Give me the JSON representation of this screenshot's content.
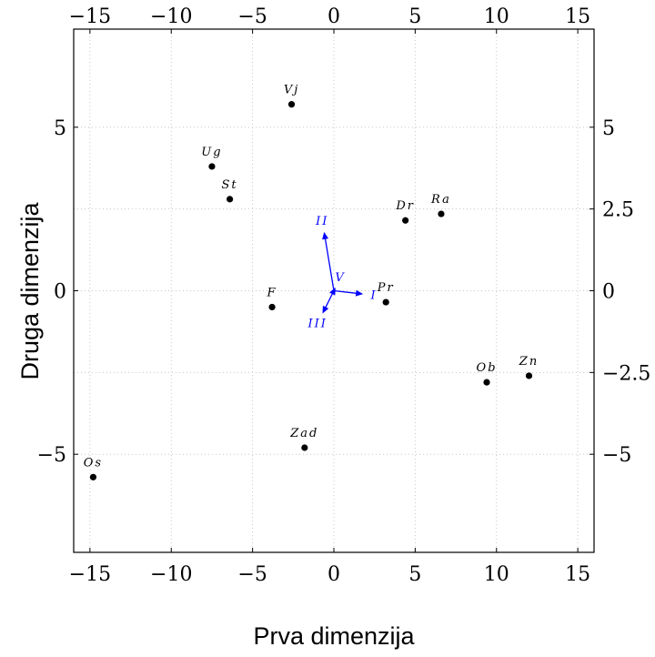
{
  "chart_data": {
    "type": "scatter",
    "xlabel": "Prva dimenzija",
    "ylabel": "Druga dimenzija",
    "xlim": [
      -16,
      16
    ],
    "ylim": [
      -8,
      8
    ],
    "grid": true,
    "xticks": [
      -15,
      -10,
      -5,
      0,
      5,
      10,
      15
    ],
    "yticks_left": [
      -5,
      0,
      5
    ],
    "yticks_right": [
      -5,
      -2.5,
      0,
      2.5,
      5
    ],
    "x_tick_labels": [
      "−15",
      "−10",
      "−5",
      "0",
      "5",
      "10",
      "15"
    ],
    "y_left_tick_labels": [
      "−5",
      "0",
      "5"
    ],
    "y_right_tick_labels": [
      "−5",
      "−2.5",
      "0",
      "2.5",
      "5"
    ],
    "points": [
      {
        "label": "Vj",
        "x": -2.6,
        "y": 5.7
      },
      {
        "label": "Ug",
        "x": -7.5,
        "y": 3.8
      },
      {
        "label": "St",
        "x": -6.4,
        "y": 2.8
      },
      {
        "label": "Dr",
        "x": 4.4,
        "y": 2.15
      },
      {
        "label": "Ra",
        "x": 6.6,
        "y": 2.35
      },
      {
        "label": "Pr",
        "x": 3.2,
        "y": -0.35
      },
      {
        "label": "F",
        "x": -3.8,
        "y": -0.5
      },
      {
        "label": "Ob",
        "x": 9.4,
        "y": -2.8
      },
      {
        "label": "Zn",
        "x": 12.0,
        "y": -2.6
      },
      {
        "label": "Zad",
        "x": -1.8,
        "y": -4.8
      },
      {
        "label": "Os",
        "x": -14.8,
        "y": -5.7
      }
    ],
    "vectors": [
      {
        "label": "II",
        "x": -0.6,
        "y": 1.8
      },
      {
        "label": "I",
        "x": 1.8,
        "y": -0.1
      },
      {
        "label": "V",
        "x": 0.1,
        "y": 0.1
      },
      {
        "label": "III",
        "x": -0.7,
        "y": -0.7
      }
    ],
    "point_color": "#000000",
    "vector_color": "#0000ff"
  }
}
